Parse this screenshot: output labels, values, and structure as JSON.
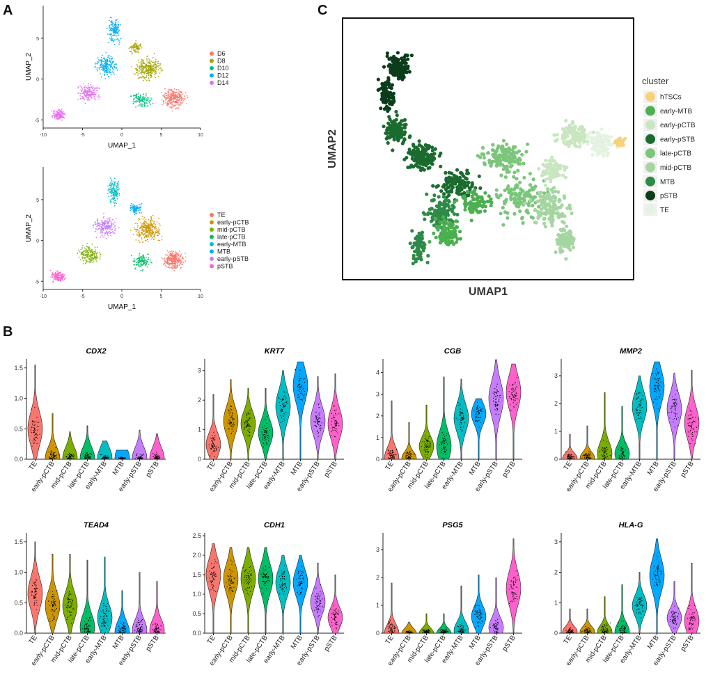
{
  "panels": {
    "a": "A",
    "b": "B",
    "c": "C"
  },
  "chart_data": [
    {
      "id": "umap_A1",
      "type": "scatter",
      "xlabel": "UMAP_1",
      "ylabel": "UMAP_2",
      "xlim": [
        -10,
        10
      ],
      "ylim": [
        -6,
        9
      ],
      "xticks": [
        -10,
        -5,
        0,
        5,
        10
      ],
      "yticks": [
        -5,
        0,
        5
      ],
      "legend": [
        {
          "label": "D6",
          "color": "#F8766D"
        },
        {
          "label": "D8",
          "color": "#A3A500"
        },
        {
          "label": "D10",
          "color": "#00BF7D"
        },
        {
          "label": "D12",
          "color": "#00B0F6"
        },
        {
          "label": "D14",
          "color": "#E76BF3"
        }
      ]
    },
    {
      "id": "umap_A2",
      "type": "scatter",
      "xlabel": "UMAP_1",
      "ylabel": "UMAP_2",
      "xlim": [
        -10,
        10
      ],
      "ylim": [
        -6,
        9
      ],
      "xticks": [
        -10,
        -5,
        0,
        5,
        10
      ],
      "yticks": [
        -5,
        0,
        5
      ],
      "legend": [
        {
          "label": "TE",
          "color": "#F8766D"
        },
        {
          "label": "early-pCTB",
          "color": "#CD9600"
        },
        {
          "label": "mid-pCTB",
          "color": "#7CAE00"
        },
        {
          "label": "late-pCTB",
          "color": "#00BE67"
        },
        {
          "label": "early-MTB",
          "color": "#00BFC4"
        },
        {
          "label": "MTB",
          "color": "#00A9FF"
        },
        {
          "label": "early-pSTB",
          "color": "#C77CFF"
        },
        {
          "label": "pSTB",
          "color": "#FF61CC"
        }
      ]
    },
    {
      "id": "umap_C",
      "type": "scatter",
      "xlabel": "UMAP1",
      "ylabel": "UMAP2",
      "legend_title": "cluster",
      "legend": [
        {
          "label": "hTSCs",
          "color": "#F6D27A"
        },
        {
          "label": "early-MTB",
          "color": "#4CAF50"
        },
        {
          "label": "early-pCTB",
          "color": "#C8E6C0"
        },
        {
          "label": "early-pSTB",
          "color": "#1B6B2F"
        },
        {
          "label": "late-pCTB",
          "color": "#7BC67B"
        },
        {
          "label": "mid-pCTB",
          "color": "#A5D6A1"
        },
        {
          "label": "MTB",
          "color": "#2E8B47"
        },
        {
          "label": "pSTB",
          "color": "#0B3D1A"
        },
        {
          "label": "TE",
          "color": "#E4F3E1"
        }
      ]
    },
    {
      "id": "violins",
      "type": "violin",
      "categories": [
        "TE",
        "early-pCTB",
        "mid-pCTB",
        "late-pCTB",
        "early-MTB",
        "MTB",
        "early-pSTB",
        "pSTB"
      ],
      "colors": [
        "#F8766D",
        "#CD9600",
        "#7CAE00",
        "#00BE67",
        "#00BFC4",
        "#00A9FF",
        "#C77CFF",
        "#FF61CC"
      ],
      "genes": [
        {
          "name": "CDX2",
          "ylim": [
            0,
            1.6
          ],
          "yticks": [
            0.0,
            0.5,
            1.0,
            1.5
          ],
          "medians": [
            0.5,
            0.02,
            0.02,
            0.02,
            0.02,
            0.02,
            0.02,
            0.02
          ],
          "max": [
            1.55,
            0.75,
            0.45,
            0.55,
            0.3,
            0.15,
            0.48,
            0.42
          ]
        },
        {
          "name": "KRT7",
          "ylim": [
            0,
            3.3
          ],
          "yticks": [
            0,
            1,
            2,
            3
          ],
          "medians": [
            0.5,
            1.3,
            1.2,
            0.9,
            1.8,
            2.5,
            1.3,
            1.2
          ],
          "max": [
            2.2,
            2.7,
            2.4,
            2.4,
            3.0,
            3.3,
            2.8,
            2.9
          ]
        },
        {
          "name": "CGB",
          "ylim": [
            0,
            4.5
          ],
          "yticks": [
            0,
            1,
            2,
            3,
            4
          ],
          "medians": [
            0.05,
            0.05,
            0.6,
            0.6,
            1.9,
            2.1,
            2.8,
            3.1
          ],
          "max": [
            2.7,
            1.7,
            2.5,
            3.8,
            3.7,
            2.8,
            4.6,
            4.4
          ]
        },
        {
          "name": "MMP2",
          "ylim": [
            0,
            3.5
          ],
          "yticks": [
            0,
            1,
            2,
            3
          ],
          "medians": [
            0.05,
            0.05,
            0.2,
            0.2,
            1.9,
            2.6,
            1.8,
            1.3
          ],
          "max": [
            0.9,
            1.2,
            2.4,
            1.9,
            3.0,
            3.5,
            3.1,
            3.2
          ]
        },
        {
          "name": "TEAD4",
          "ylim": [
            0,
            1.6
          ],
          "yticks": [
            0.0,
            0.5,
            1.0,
            1.5
          ],
          "medians": [
            0.65,
            0.45,
            0.45,
            0.1,
            0.25,
            0.02,
            0.05,
            0.05
          ],
          "max": [
            1.5,
            1.3,
            1.3,
            1.2,
            1.25,
            0.7,
            1.0,
            0.85
          ]
        },
        {
          "name": "CDH1",
          "ylim": [
            0,
            2.5
          ],
          "yticks": [
            0.0,
            0.5,
            1.0,
            1.5,
            2.0,
            2.5
          ],
          "medians": [
            1.5,
            1.4,
            1.4,
            1.4,
            1.3,
            1.3,
            0.8,
            0.4
          ],
          "max": [
            2.3,
            2.2,
            2.2,
            2.2,
            2.0,
            2.0,
            1.8,
            1.5
          ]
        },
        {
          "name": "PSG5",
          "ylim": [
            0,
            3.5
          ],
          "yticks": [
            0,
            1,
            2,
            3
          ],
          "medians": [
            0.0,
            0.0,
            0.0,
            0.0,
            0.1,
            0.6,
            0.2,
            1.6
          ],
          "max": [
            1.8,
            0.4,
            0.7,
            0.7,
            1.7,
            2.1,
            2.0,
            3.4
          ]
        },
        {
          "name": "HLA-G",
          "ylim": [
            0,
            3.2
          ],
          "yticks": [
            0,
            1,
            2,
            3
          ],
          "medians": [
            0.05,
            0.05,
            0.05,
            0.05,
            0.9,
            1.9,
            0.5,
            0.4
          ],
          "max": [
            0.8,
            0.8,
            1.2,
            1.6,
            2.0,
            3.1,
            1.7,
            2.3
          ]
        }
      ]
    }
  ]
}
